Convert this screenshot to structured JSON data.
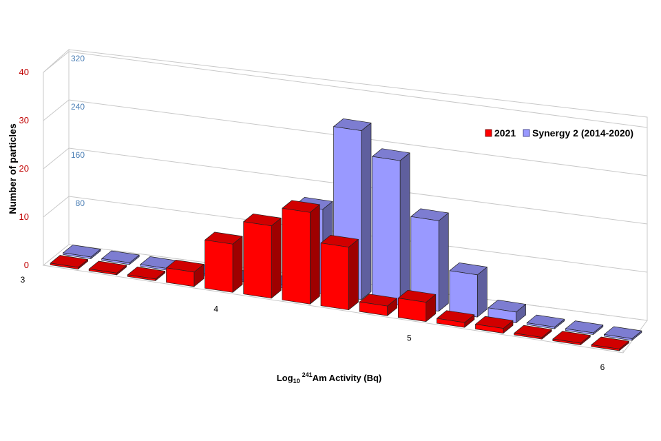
{
  "chart_data": {
    "type": "bar",
    "style": "3d-clustered-depth",
    "title": "",
    "ylabel": "Number of particles",
    "xlabel_parts": {
      "prefix": "Log",
      "sub": "10",
      "sup": "241",
      "rest": "Am Activity (Bq)"
    },
    "x_range": [
      3,
      6
    ],
    "x_ticks": [
      "3",
      "4",
      "5",
      "6"
    ],
    "bin_width": 0.2,
    "bin_centers": [
      3.1,
      3.3,
      3.5,
      3.7,
      3.9,
      4.1,
      4.3,
      4.5,
      4.7,
      4.9,
      5.1,
      5.3,
      5.5,
      5.7,
      5.9
    ],
    "left_axis": {
      "range": [
        0,
        40
      ],
      "ticks": [
        "0",
        "10",
        "20",
        "30",
        "40"
      ],
      "color": "#c00000"
    },
    "back_axis": {
      "range": [
        0,
        320
      ],
      "ticks": [
        "80",
        "160",
        "240",
        "320"
      ],
      "color": "#4a7eb5"
    },
    "grid": true,
    "legend_position": "right",
    "series": [
      {
        "name": "2021",
        "axis": "left",
        "color": "#ff0000",
        "values": [
          0,
          0,
          0,
          3,
          10,
          15,
          19,
          13,
          2,
          4,
          1,
          1,
          0,
          0,
          0
        ]
      },
      {
        "name": "Synergy 2 (2014-2020)",
        "axis": "back",
        "color": "#9999ff",
        "values": [
          0,
          0,
          0,
          0,
          0,
          4,
          140,
          280,
          240,
          150,
          70,
          18,
          2,
          0,
          0
        ]
      }
    ]
  }
}
